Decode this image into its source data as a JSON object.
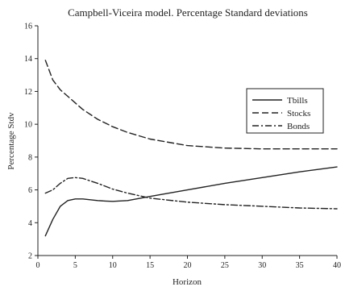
{
  "chart_data": {
    "type": "line",
    "title": "Campbell-Viceira model. Percentage Standard deviations",
    "xlabel": "Horizon",
    "ylabel": "Percentage Stdv",
    "xlim": [
      0,
      40
    ],
    "ylim": [
      2,
      16
    ],
    "xticks": [
      0,
      5,
      10,
      15,
      20,
      25,
      30,
      35,
      40
    ],
    "yticks": [
      2,
      4,
      6,
      8,
      10,
      12,
      14,
      16
    ],
    "legend_position": "right",
    "grid": false,
    "series": [
      {
        "name": "Tbills",
        "style": "solid",
        "x": [
          1,
          2,
          3,
          4,
          5,
          6,
          7,
          8,
          9,
          10,
          12,
          15,
          20,
          25,
          30,
          35,
          40
        ],
        "y": [
          3.2,
          4.2,
          5.0,
          5.35,
          5.45,
          5.45,
          5.4,
          5.35,
          5.32,
          5.3,
          5.35,
          5.6,
          6.0,
          6.4,
          6.75,
          7.1,
          7.4
        ]
      },
      {
        "name": "Stocks",
        "style": "dashed",
        "x": [
          1,
          2,
          3,
          4,
          5,
          6,
          8,
          10,
          12,
          15,
          20,
          25,
          30,
          35,
          40
        ],
        "y": [
          13.9,
          12.7,
          12.1,
          11.7,
          11.3,
          10.9,
          10.3,
          9.85,
          9.5,
          9.1,
          8.7,
          8.55,
          8.5,
          8.5,
          8.5
        ]
      },
      {
        "name": "Bonds",
        "style": "dashdot",
        "x": [
          1,
          2,
          3,
          4,
          5,
          6,
          7,
          8,
          10,
          12,
          15,
          20,
          25,
          30,
          35,
          40
        ],
        "y": [
          5.8,
          6.0,
          6.4,
          6.7,
          6.75,
          6.7,
          6.55,
          6.4,
          6.05,
          5.8,
          5.5,
          5.25,
          5.1,
          5.0,
          4.9,
          4.85
        ]
      }
    ]
  }
}
